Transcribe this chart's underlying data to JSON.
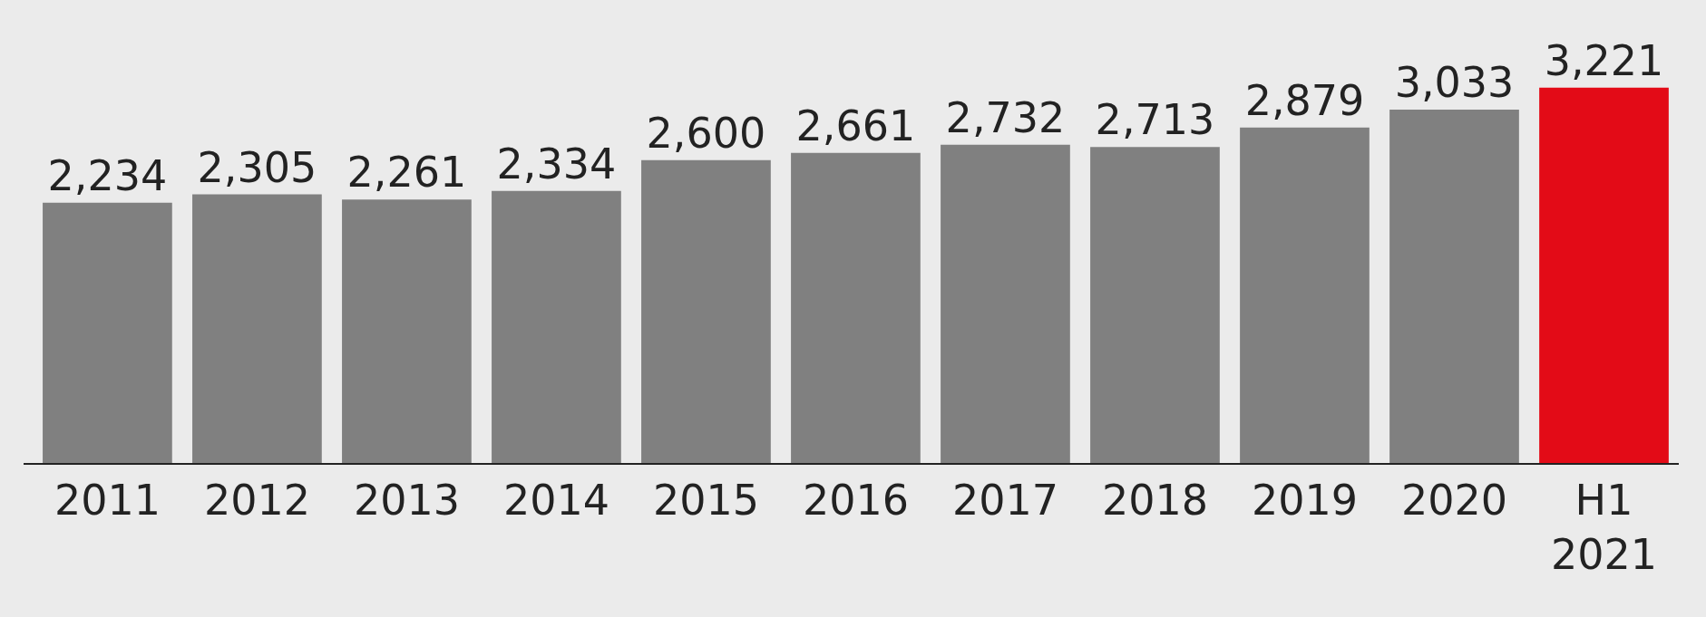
{
  "chart_data": {
    "type": "bar",
    "categories": [
      "2011",
      "2012",
      "2013",
      "2014",
      "2015",
      "2016",
      "2017",
      "2018",
      "2019",
      "2020",
      "H1 2021"
    ],
    "values": [
      2234,
      2305,
      2261,
      2334,
      2600,
      2661,
      2732,
      2713,
      2879,
      3033,
      3221
    ],
    "value_labels": [
      "2,234",
      "2,305",
      "2,261",
      "2,334",
      "2,600",
      "2,661",
      "2,732",
      "2,713",
      "2,879",
      "3,033",
      "3,221"
    ],
    "colors": [
      "#808080",
      "#808080",
      "#808080",
      "#808080",
      "#808080",
      "#808080",
      "#808080",
      "#808080",
      "#808080",
      "#808080",
      "#e30b17"
    ]
  }
}
